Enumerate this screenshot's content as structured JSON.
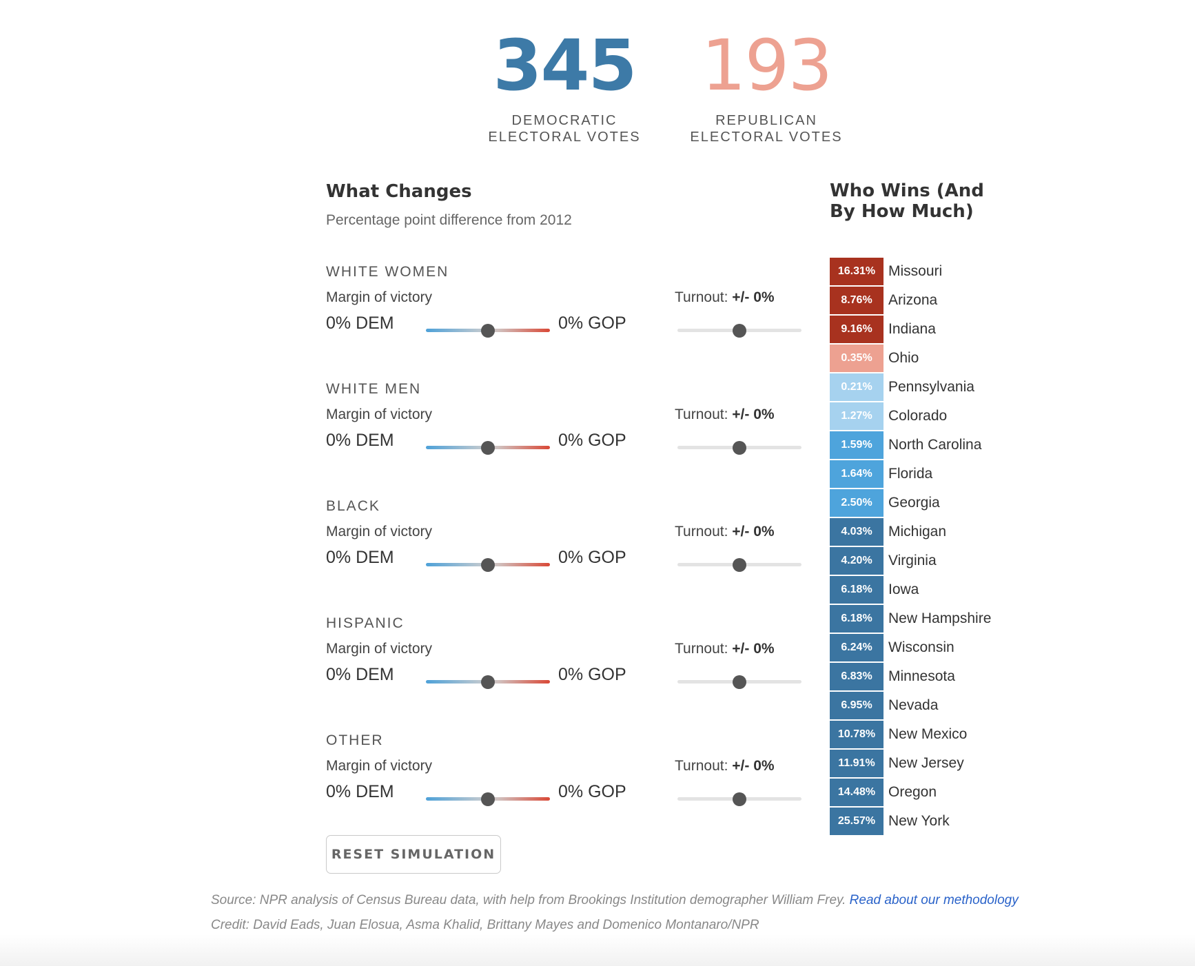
{
  "tally": {
    "dem": {
      "value": "345",
      "label_line1": "DEMOCRATIC",
      "label_line2": "ELECTORAL VOTES"
    },
    "gop": {
      "value": "193",
      "label_line1": "REPUBLICAN",
      "label_line2": "ELECTORAL VOTES"
    }
  },
  "changes": {
    "title": "What Changes",
    "subtitle": "Percentage point difference from 2012",
    "groups": [
      {
        "name": "WHITE WOMEN",
        "margin_label": "Margin of victory",
        "dem_value": "0% DEM",
        "gop_value": "0% GOP",
        "turnout_label": "Turnout:",
        "turnout_value": "+/- 0%",
        "margin_position": 0.5,
        "turnout_position": 0.5
      },
      {
        "name": "WHITE MEN",
        "margin_label": "Margin of victory",
        "dem_value": "0% DEM",
        "gop_value": "0% GOP",
        "turnout_label": "Turnout:",
        "turnout_value": "+/- 0%",
        "margin_position": 0.5,
        "turnout_position": 0.5
      },
      {
        "name": "BLACK",
        "margin_label": "Margin of victory",
        "dem_value": "0% DEM",
        "gop_value": "0% GOP",
        "turnout_label": "Turnout:",
        "turnout_value": "+/- 0%",
        "margin_position": 0.5,
        "turnout_position": 0.5
      },
      {
        "name": "HISPANIC",
        "margin_label": "Margin of victory",
        "dem_value": "0% DEM",
        "gop_value": "0% GOP",
        "turnout_label": "Turnout:",
        "turnout_value": "+/- 0%",
        "margin_position": 0.5,
        "turnout_position": 0.5
      },
      {
        "name": "OTHER",
        "margin_label": "Margin of victory",
        "dem_value": "0% DEM",
        "gop_value": "0% GOP",
        "turnout_label": "Turnout:",
        "turnout_value": "+/- 0%",
        "margin_position": 0.5,
        "turnout_position": 0.5
      }
    ],
    "reset_label": "RESET SIMULATION"
  },
  "who_wins": {
    "title": "Who Wins (And By How Much)",
    "states": [
      {
        "pct": "16.31%",
        "name": "Missouri",
        "color": "#a8321f"
      },
      {
        "pct": "8.76%",
        "name": "Arizona",
        "color": "#a8321f"
      },
      {
        "pct": "9.16%",
        "name": "Indiana",
        "color": "#a8321f"
      },
      {
        "pct": "0.35%",
        "name": "Ohio",
        "color": "#eda191"
      },
      {
        "pct": "0.21%",
        "name": "Pennsylvania",
        "color": "#a6d2ef"
      },
      {
        "pct": "1.27%",
        "name": "Colorado",
        "color": "#a6d2ef"
      },
      {
        "pct": "1.59%",
        "name": "North Carolina",
        "color": "#4ea4dc"
      },
      {
        "pct": "1.64%",
        "name": "Florida",
        "color": "#4ea4dc"
      },
      {
        "pct": "2.50%",
        "name": "Georgia",
        "color": "#4ea4dc"
      },
      {
        "pct": "4.03%",
        "name": "Michigan",
        "color": "#3b75a1"
      },
      {
        "pct": "4.20%",
        "name": "Virginia",
        "color": "#3b75a1"
      },
      {
        "pct": "6.18%",
        "name": "Iowa",
        "color": "#3b75a1"
      },
      {
        "pct": "6.18%",
        "name": "New Hampshire",
        "color": "#3b75a1"
      },
      {
        "pct": "6.24%",
        "name": "Wisconsin",
        "color": "#3b75a1"
      },
      {
        "pct": "6.83%",
        "name": "Minnesota",
        "color": "#3b75a1"
      },
      {
        "pct": "6.95%",
        "name": "Nevada",
        "color": "#3b75a1"
      },
      {
        "pct": "10.78%",
        "name": "New Mexico",
        "color": "#3b75a1"
      },
      {
        "pct": "11.91%",
        "name": "New Jersey",
        "color": "#3b75a1"
      },
      {
        "pct": "14.48%",
        "name": "Oregon",
        "color": "#3b75a1"
      },
      {
        "pct": "25.57%",
        "name": "New York",
        "color": "#3b75a1"
      }
    ]
  },
  "footer": {
    "source_text": "Source: NPR analysis of Census Bureau data, with help from Brookings Institution demographer William Frey.",
    "methodology_link": "Read about our methodology",
    "credit_text": "Credit: David Eads, Juan Elosua, Asma Khalid, Brittany Mayes and Domenico Montanaro/NPR"
  },
  "colors": {
    "dem": "#3d7aa7",
    "gop": "#eda191",
    "link": "#2962c9"
  }
}
